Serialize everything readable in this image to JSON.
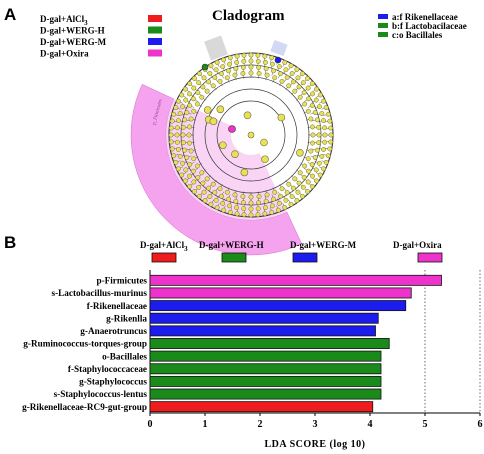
{
  "panels": {
    "a": "A",
    "b": "B"
  },
  "cladogram": {
    "title": "Cladogram",
    "group_legend": [
      {
        "label": "D-gal+AlCl",
        "subscript": "3",
        "color": "#ee1c1c"
      },
      {
        "label": "D-gal+WERG-H",
        "color": "#1a8a1a"
      },
      {
        "label": "D-gal+WERG-M",
        "color": "#1c1cee"
      },
      {
        "label": "D-gal+Oxira",
        "color": "#ee33cc"
      }
    ],
    "taxa_legend": [
      {
        "label": "a:f  Rikenellaceae",
        "color": "#1c1cee"
      },
      {
        "label": "b:f  Lactobacilaceae",
        "color": "#1a8a1a"
      },
      {
        "label": "c:o  Bacillales",
        "color": "#1a8a1a"
      }
    ],
    "sector_label": "p_Firmicutes",
    "colors": {
      "node": "#e8e05a",
      "node_edge": "#6b6b2a",
      "sector": "#f5a3ee",
      "highlight": "#c0c0c0"
    }
  },
  "chart_data": {
    "type": "bar",
    "orientation": "horizontal",
    "xlabel": "LDA  SCORE (log 10)",
    "xlim": [
      0,
      6
    ],
    "xticks": [
      "0",
      "1",
      "2",
      "3",
      "4",
      "5",
      "6"
    ],
    "gridlines_at": [
      5,
      6
    ],
    "legend": [
      {
        "label": "D-gal+AlCl",
        "subscript": "3",
        "color": "#ee1c1c"
      },
      {
        "label": "D-gal+WERG-H",
        "color": "#1a8a1a"
      },
      {
        "label": "D-gal+WERG-M",
        "color": "#1c1cee"
      },
      {
        "label": "D-gal+Oxira",
        "color": "#ee33cc"
      }
    ],
    "categories": [
      "p-Firmicutes",
      "s-Lactobacillus-murinus",
      "f-Rikenellaceae",
      "g-Rikenlla",
      "g-Anaerotruncus",
      "g-Ruminococcus-torques-group",
      "o-Bacillales",
      "f-Staphylococcaceae",
      "g-Staphylococcus",
      "s-Staphylococcus-lentus",
      "g-Rikenellaceae-RC9-gut-group"
    ],
    "values": [
      5.3,
      4.75,
      4.65,
      4.15,
      4.1,
      4.35,
      4.2,
      4.2,
      4.2,
      4.2,
      4.05
    ],
    "groups": [
      "D-gal+Oxira",
      "D-gal+Oxira",
      "D-gal+WERG-M",
      "D-gal+WERG-M",
      "D-gal+WERG-M",
      "D-gal+WERG-H",
      "D-gal+WERG-H",
      "D-gal+WERG-H",
      "D-gal+WERG-H",
      "D-gal+WERG-H",
      "D-gal+AlCl3"
    ]
  }
}
